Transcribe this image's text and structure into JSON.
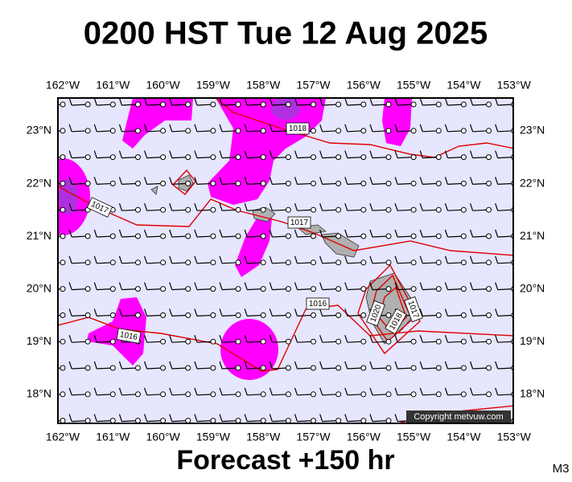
{
  "header": {
    "title": "0200 HST Tue 12 Aug 2025"
  },
  "map": {
    "lon_labels": [
      "162°W",
      "161°W",
      "160°W",
      "159°W",
      "158°W",
      "157°W",
      "156°W",
      "155°W",
      "154°W",
      "153°W"
    ],
    "lat_labels": [
      "23°N",
      "22°N",
      "21°N",
      "20°N",
      "19°N",
      "18°N"
    ],
    "isobar_labels": [
      "1018",
      "1017",
      "1017",
      "1016",
      "1016",
      "1020",
      "1018",
      "1017"
    ],
    "copyright": "Copyright metvuw.com"
  },
  "footer": {
    "forecast": "Forecast +150 hr",
    "model": "M3"
  }
}
